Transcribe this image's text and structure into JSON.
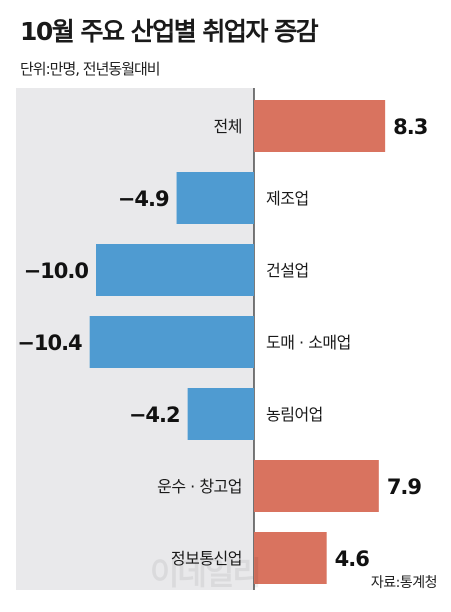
{
  "title": "10월 주요 산업별 취업자 증감",
  "subtitle": "단위:만명, 전년동월대비",
  "source": "자료:통계청",
  "watermark": "이데일리",
  "colors": {
    "positive": "#d9735f",
    "negative": "#4f9bd1",
    "panel": "#e9e9eb"
  },
  "chart_data": {
    "type": "bar",
    "orientation": "horizontal",
    "categories": [
      "전체",
      "제조업",
      "건설업",
      "도매 · 소매업",
      "농림어업",
      "운수 · 창고업",
      "정보통신업"
    ],
    "values": [
      8.3,
      -4.9,
      -10.0,
      -10.4,
      -4.2,
      7.9,
      4.6
    ],
    "value_labels": [
      "8.3",
      "−4.9",
      "−10.0",
      "−10.4",
      "−4.2",
      "7.9",
      "4.6"
    ],
    "title": "10월 주요 산업별 취업자 증감",
    "xlabel": "",
    "ylabel": "",
    "grid": false
  }
}
